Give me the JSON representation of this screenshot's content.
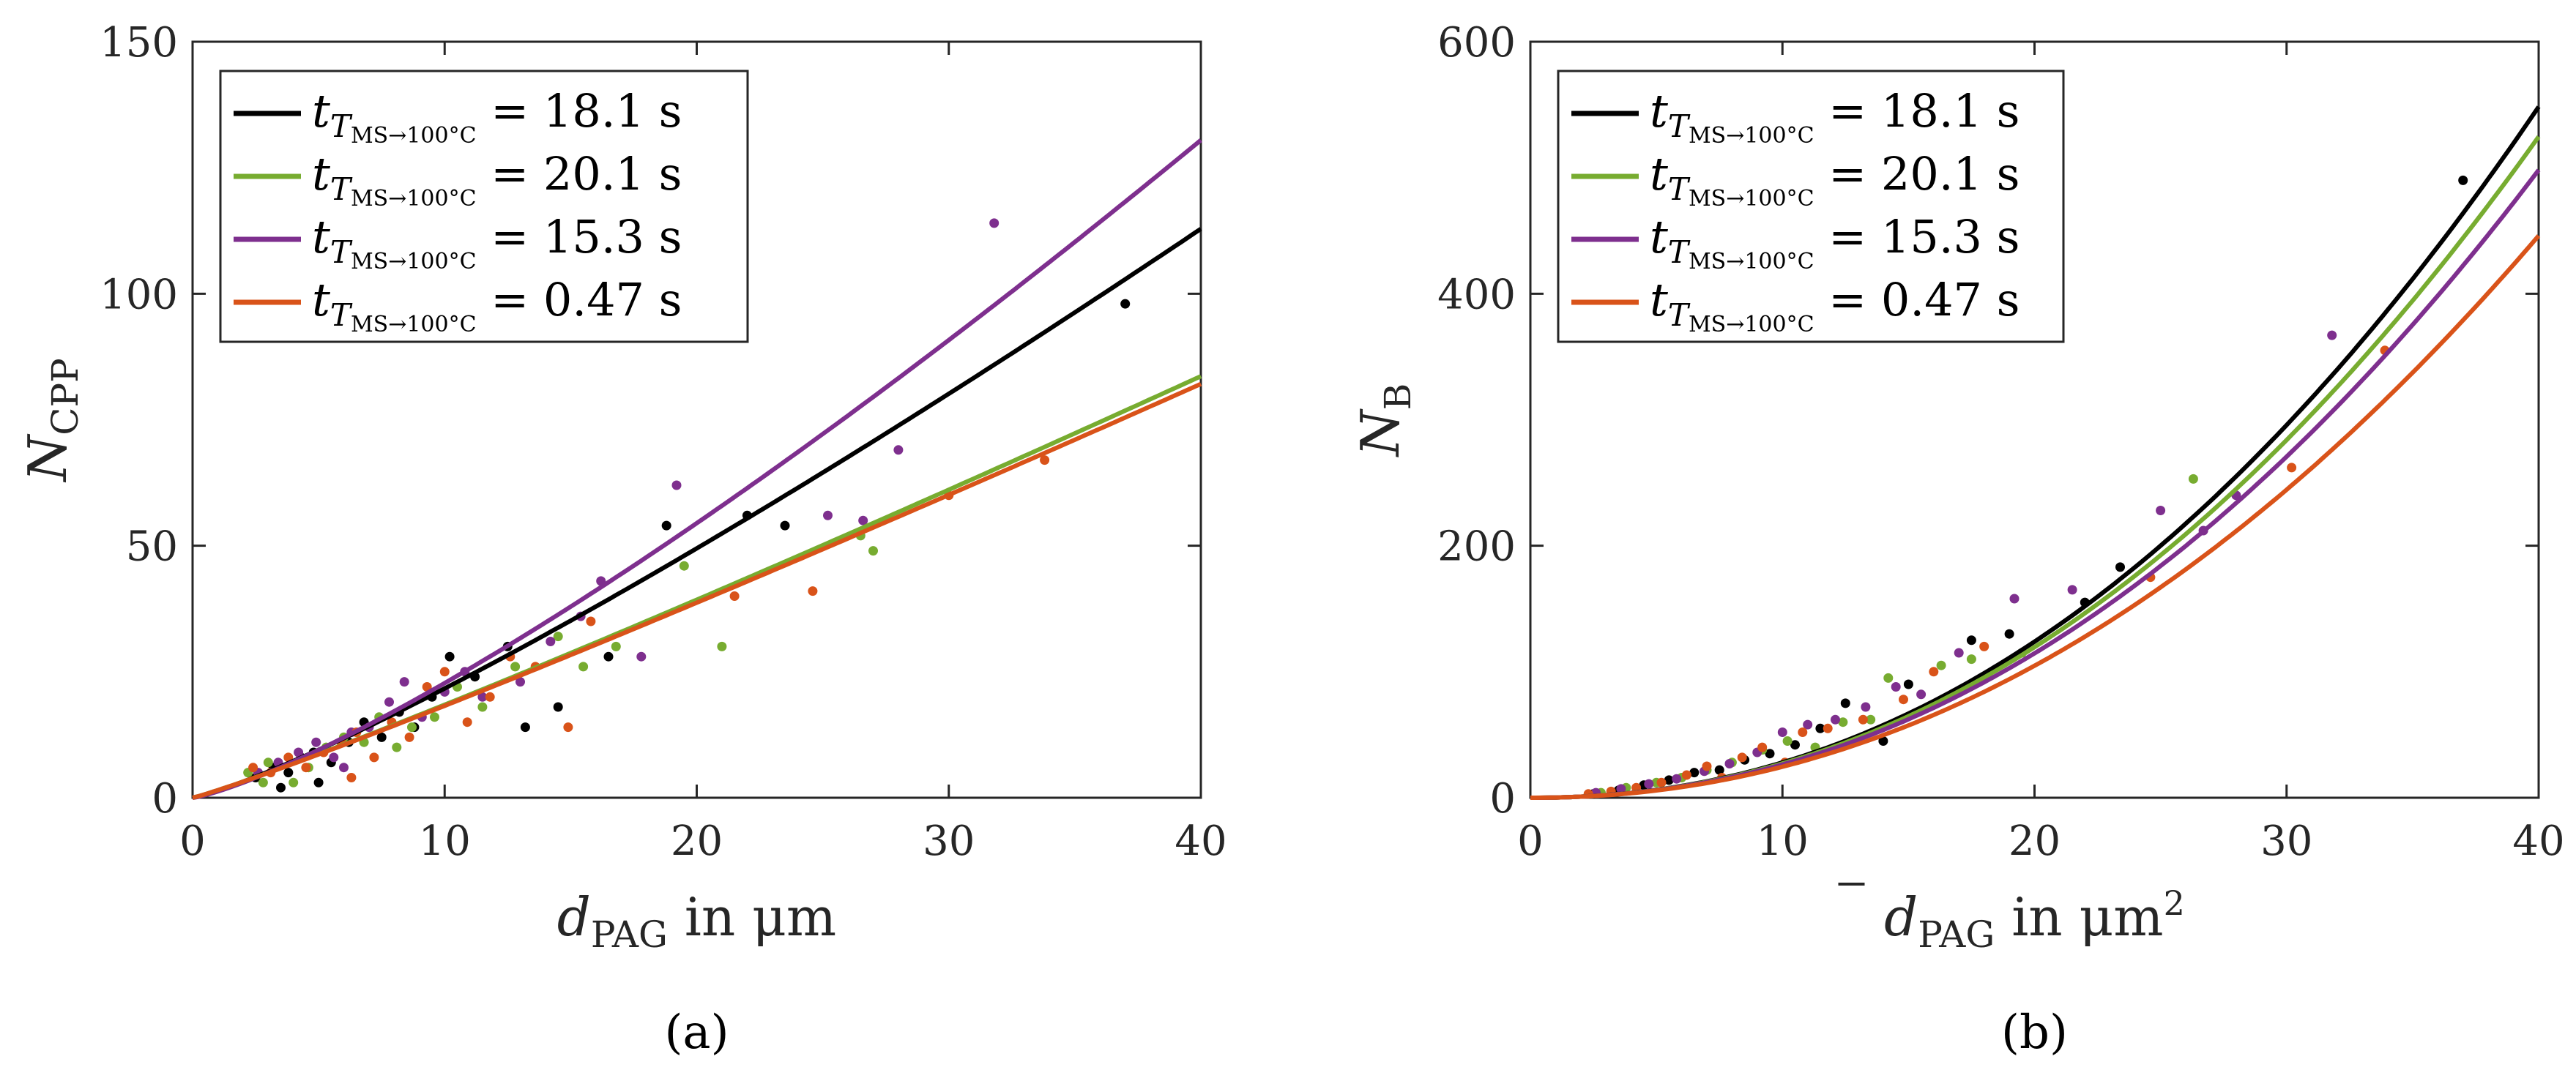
{
  "colors": {
    "black": "#000000",
    "green": "#77AC30",
    "purple": "#7E2F8E",
    "orange": "#D95319",
    "axis": "#262626"
  },
  "chart_data": [
    {
      "type": "scatter",
      "panel_label": "(a)",
      "xlabel_main": "d",
      "xlabel_sub": "PAG",
      "xlabel_rest": " in μm",
      "xlabel_sup": "",
      "xlabel_bar": false,
      "ylabel_main": "N",
      "ylabel_sub": "CPP",
      "xlim": [
        0,
        40
      ],
      "ylim": [
        0,
        150
      ],
      "xticks": [
        0,
        10,
        20,
        30,
        40
      ],
      "yticks": [
        0,
        50,
        100,
        150
      ],
      "legend_position": "top-left",
      "series": [
        {
          "name": "black",
          "legend_sub": "T",
          "legend_subsub": "MS→100°C",
          "legend_value": "= 18.1 s",
          "color_key": "black",
          "fit": {
            "a": 1.4,
            "p": 1.19
          },
          "points": [
            [
              2.5,
              4
            ],
            [
              3.2,
              6
            ],
            [
              3.8,
              5
            ],
            [
              4.3,
              8
            ],
            [
              4.8,
              9
            ],
            [
              5.5,
              7
            ],
            [
              6.2,
              11
            ],
            [
              6.8,
              15
            ],
            [
              7.5,
              12
            ],
            [
              8.2,
              17
            ],
            [
              8.8,
              14
            ],
            [
              9.5,
              20
            ],
            [
              10.2,
              28
            ],
            [
              11.2,
              24
            ],
            [
              12.5,
              30
            ],
            [
              13.2,
              14
            ],
            [
              14.5,
              18
            ],
            [
              16.5,
              28
            ],
            [
              18.8,
              54
            ],
            [
              22,
              56
            ],
            [
              23.5,
              54
            ],
            [
              37,
              98
            ],
            [
              5,
              3
            ],
            [
              3.5,
              2
            ]
          ]
        },
        {
          "name": "green",
          "legend_sub": "T",
          "legend_subsub": "MS→100°C",
          "legend_value": "= 20.1 s",
          "color_key": "green",
          "fit": {
            "a": 1.5,
            "p": 1.09
          },
          "points": [
            [
              2.2,
              5
            ],
            [
              3,
              7
            ],
            [
              4,
              3
            ],
            [
              4.6,
              6
            ],
            [
              5.3,
              10
            ],
            [
              6,
              12
            ],
            [
              6.8,
              11
            ],
            [
              7.4,
              16
            ],
            [
              8.1,
              10
            ],
            [
              8.7,
              14
            ],
            [
              9.6,
              16
            ],
            [
              10.5,
              22
            ],
            [
              11.5,
              18
            ],
            [
              12.8,
              26
            ],
            [
              14.5,
              32
            ],
            [
              15.5,
              26
            ],
            [
              16.8,
              30
            ],
            [
              19.5,
              46
            ],
            [
              21,
              30
            ],
            [
              26.5,
              52
            ],
            [
              27,
              49
            ],
            [
              2.8,
              3
            ]
          ]
        },
        {
          "name": "purple",
          "legend_sub": "T",
          "legend_subsub": "MS→100°C",
          "legend_value": "= 15.3 s",
          "color_key": "purple",
          "fit": {
            "a": 1.25,
            "p": 1.26
          },
          "points": [
            [
              2.6,
              5
            ],
            [
              3.4,
              7
            ],
            [
              4.2,
              9
            ],
            [
              4.9,
              11
            ],
            [
              5.6,
              8
            ],
            [
              6.3,
              13
            ],
            [
              7,
              14
            ],
            [
              7.8,
              19
            ],
            [
              8.4,
              23
            ],
            [
              9.1,
              16
            ],
            [
              10,
              21
            ],
            [
              10.8,
              25
            ],
            [
              11.5,
              20
            ],
            [
              13,
              23
            ],
            [
              14.2,
              31
            ],
            [
              15.4,
              36
            ],
            [
              16.2,
              43
            ],
            [
              17.8,
              28
            ],
            [
              19.2,
              62
            ],
            [
              25.2,
              56
            ],
            [
              26.6,
              55
            ],
            [
              28,
              69
            ],
            [
              31.8,
              114
            ],
            [
              6,
              6
            ]
          ]
        },
        {
          "name": "orange",
          "legend_sub": "T",
          "legend_subsub": "MS→100°C",
          "legend_value": "= 0.47 s",
          "color_key": "orange",
          "fit": {
            "a": 1.5,
            "p": 1.085
          },
          "points": [
            [
              2.4,
              6
            ],
            [
              3.1,
              5
            ],
            [
              3.8,
              8
            ],
            [
              4.5,
              6
            ],
            [
              5.2,
              9
            ],
            [
              5.9,
              11
            ],
            [
              6.5,
              13
            ],
            [
              7.2,
              8
            ],
            [
              7.9,
              15
            ],
            [
              8.6,
              12
            ],
            [
              9.3,
              22
            ],
            [
              10,
              25
            ],
            [
              10.9,
              15
            ],
            [
              11.8,
              20
            ],
            [
              12.6,
              28
            ],
            [
              13.6,
              26
            ],
            [
              14.9,
              14
            ],
            [
              15.8,
              35
            ],
            [
              21.5,
              40
            ],
            [
              24.6,
              41
            ],
            [
              30,
              60
            ],
            [
              33.8,
              67
            ],
            [
              6.3,
              4
            ]
          ]
        }
      ]
    },
    {
      "type": "scatter",
      "panel_label": "(b)",
      "xlabel_main": "d",
      "xlabel_sub": "PAG",
      "xlabel_rest": " in μm",
      "xlabel_sup": "2",
      "xlabel_bar": true,
      "ylabel_main": "N",
      "ylabel_sub": "B",
      "xlim": [
        0,
        40
      ],
      "ylim": [
        0,
        600
      ],
      "xticks": [
        0,
        10,
        20,
        30,
        40
      ],
      "yticks": [
        0,
        200,
        400,
        600
      ],
      "legend_position": "top-left",
      "series": [
        {
          "name": "black",
          "legend_sub": "T",
          "legend_subsub": "MS→100°C",
          "legend_value": "= 18.1 s",
          "color_key": "black",
          "fit": {
            "a": 0.2,
            "p": 2.146
          },
          "points": [
            [
              2.5,
              3
            ],
            [
              3.5,
              6
            ],
            [
              4.5,
              10
            ],
            [
              5.5,
              14
            ],
            [
              6.5,
              20
            ],
            [
              7.5,
              22
            ],
            [
              8.5,
              30
            ],
            [
              9.5,
              35
            ],
            [
              10.5,
              42
            ],
            [
              11.5,
              55
            ],
            [
              12.5,
              75
            ],
            [
              14,
              45
            ],
            [
              15,
              90
            ],
            [
              17.5,
              125
            ],
            [
              19,
              130
            ],
            [
              22,
              155
            ],
            [
              23.4,
              183
            ],
            [
              37,
              490
            ]
          ]
        },
        {
          "name": "green",
          "legend_sub": "T",
          "legend_subsub": "MS→100°C",
          "legend_value": "= 20.1 s",
          "color_key": "green",
          "fit": {
            "a": 0.2,
            "p": 2.134
          },
          "points": [
            [
              2.8,
              4
            ],
            [
              3.8,
              8
            ],
            [
              5,
              12
            ],
            [
              6,
              16
            ],
            [
              7,
              22
            ],
            [
              8,
              28
            ],
            [
              9.2,
              38
            ],
            [
              10.2,
              45
            ],
            [
              11.3,
              40
            ],
            [
              12.4,
              60
            ],
            [
              13.5,
              62
            ],
            [
              14.2,
              95
            ],
            [
              16.3,
              105
            ],
            [
              17.5,
              110
            ],
            [
              19.5,
              115
            ],
            [
              26.3,
              253
            ]
          ]
        },
        {
          "name": "purple",
          "legend_sub": "T",
          "legend_subsub": "MS→100°C",
          "legend_value": "= 15.3 s",
          "color_key": "purple",
          "fit": {
            "a": 0.2,
            "p": 2.12
          },
          "points": [
            [
              2.6,
              4
            ],
            [
              3.6,
              7
            ],
            [
              4.7,
              11
            ],
            [
              5.8,
              15
            ],
            [
              6.9,
              21
            ],
            [
              7.9,
              27
            ],
            [
              9,
              36
            ],
            [
              10,
              52
            ],
            [
              11,
              58
            ],
            [
              12.1,
              62
            ],
            [
              13.3,
              72
            ],
            [
              14.5,
              88
            ],
            [
              15.5,
              82
            ],
            [
              17,
              115
            ],
            [
              19.2,
              158
            ],
            [
              21.5,
              165
            ],
            [
              25,
              228
            ],
            [
              26.7,
              212
            ],
            [
              28,
              240
            ],
            [
              31.8,
              367
            ]
          ]
        },
        {
          "name": "orange",
          "legend_sub": "T",
          "legend_subsub": "MS→100°C",
          "legend_value": "= 0.47 s",
          "color_key": "orange",
          "fit": {
            "a": 0.2,
            "p": 2.09
          },
          "points": [
            [
              2.3,
              3
            ],
            [
              3.2,
              5
            ],
            [
              4.2,
              8
            ],
            [
              5.2,
              12
            ],
            [
              6.2,
              18
            ],
            [
              7,
              25
            ],
            [
              7.6,
              16
            ],
            [
              8.4,
              32
            ],
            [
              9.2,
              40
            ],
            [
              10.1,
              28
            ],
            [
              10.8,
              52
            ],
            [
              11.8,
              55
            ],
            [
              13.2,
              62
            ],
            [
              14.8,
              78
            ],
            [
              16,
              100
            ],
            [
              18,
              120
            ],
            [
              24.6,
              175
            ],
            [
              30.2,
              262
            ],
            [
              33.9,
              355
            ]
          ]
        }
      ]
    }
  ]
}
